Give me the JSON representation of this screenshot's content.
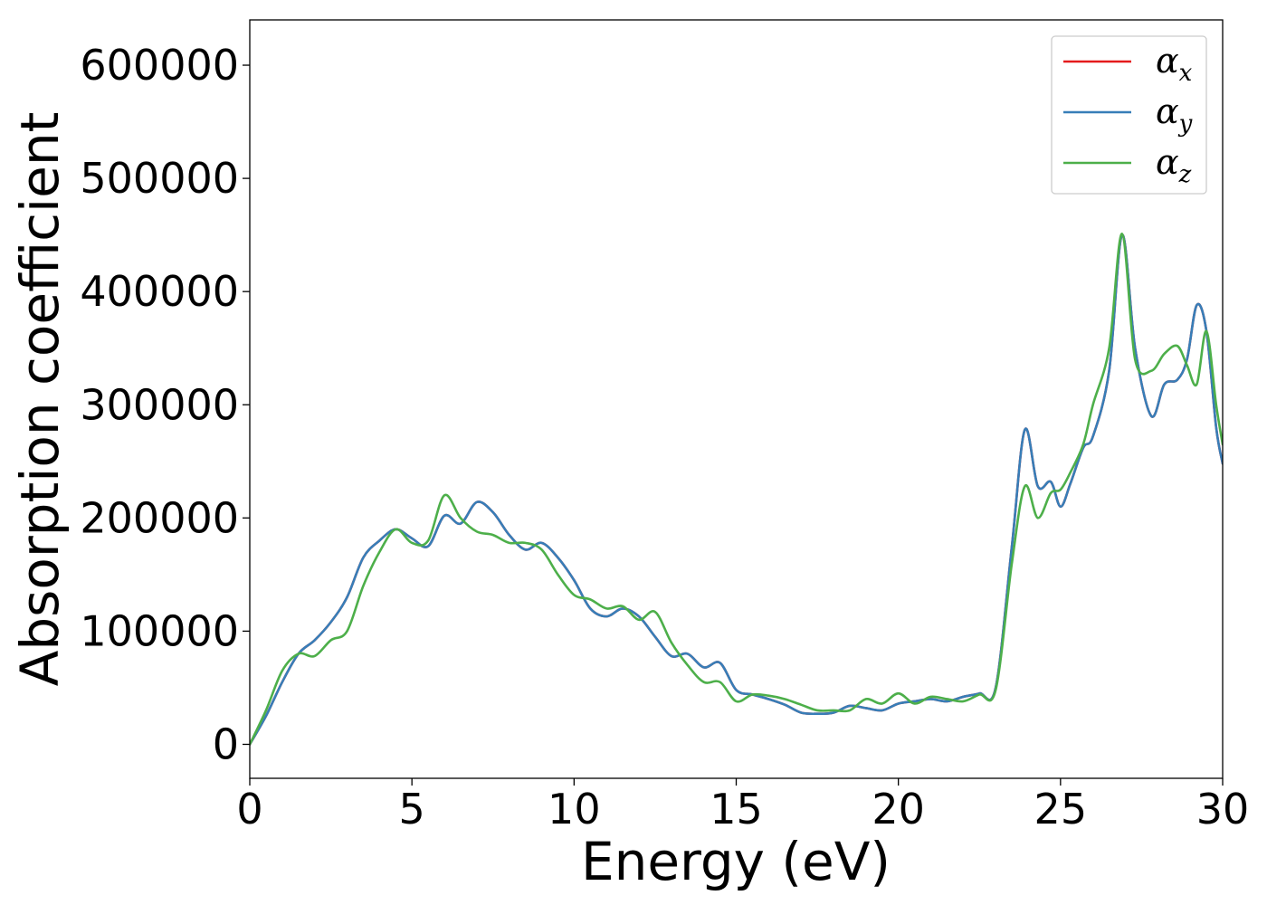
{
  "chart_data": {
    "type": "line",
    "title": "",
    "xlabel": "Energy (eV)",
    "ylabel": "Absorption coefficient",
    "xlim": [
      0,
      30
    ],
    "ylim": [
      -30000,
      640000
    ],
    "xticks": [
      0,
      5,
      10,
      15,
      20,
      25,
      30
    ],
    "xtick_labels": [
      "0",
      "5",
      "10",
      "15",
      "20",
      "25",
      "30"
    ],
    "yticks": [
      0,
      100000,
      200000,
      300000,
      400000,
      500000,
      600000
    ],
    "ytick_labels": [
      "0",
      "100000",
      "200000",
      "300000",
      "400000",
      "500000",
      "600000"
    ],
    "grid": false,
    "legend": {
      "placement": "top-right",
      "entries": [
        {
          "base": "α",
          "sub": "x",
          "color": "#e41a1c"
        },
        {
          "base": "α",
          "sub": "y",
          "color": "#377eb8"
        },
        {
          "base": "α",
          "sub": "z",
          "color": "#4daf4a"
        }
      ]
    },
    "series": [
      {
        "name": "αx",
        "color": "#e41a1c",
        "x": [
          0,
          0.5,
          1.0,
          1.5,
          2.0,
          2.5,
          3.0,
          3.5,
          4.0,
          4.5,
          5.0,
          5.5,
          6.0,
          6.5,
          7.0,
          7.5,
          8.0,
          8.5,
          9.0,
          9.5,
          10.0,
          10.5,
          11.0,
          11.5,
          12.0,
          12.5,
          13.0,
          13.5,
          14.0,
          14.5,
          15.0,
          15.5,
          16.0,
          16.5,
          17.0,
          17.5,
          18.0,
          18.5,
          19.0,
          19.5,
          20.0,
          20.5,
          21.0,
          21.5,
          22.0,
          22.5,
          23.0,
          23.5,
          23.9,
          24.3,
          24.7,
          25.0,
          25.3,
          25.7,
          26.0,
          26.5,
          26.9,
          27.3,
          27.8,
          28.2,
          28.6,
          28.9,
          29.2,
          29.5,
          29.8,
          30.0
        ],
        "y": [
          0,
          25000,
          55000,
          80000,
          92000,
          108000,
          130000,
          165000,
          180000,
          190000,
          182000,
          175000,
          202000,
          195000,
          214000,
          205000,
          185000,
          172000,
          178000,
          165000,
          145000,
          120000,
          113000,
          120000,
          113000,
          95000,
          78000,
          80000,
          68000,
          72000,
          48000,
          44000,
          40000,
          35000,
          28000,
          27000,
          28000,
          34000,
          32000,
          30000,
          36000,
          38000,
          40000,
          38000,
          42000,
          45000,
          50000,
          175000,
          278000,
          228000,
          232000,
          210000,
          230000,
          262000,
          272000,
          330000,
          450000,
          350000,
          290000,
          318000,
          322000,
          340000,
          388000,
          365000,
          280000,
          248000
        ]
      },
      {
        "name": "αy",
        "color": "#377eb8",
        "x": [
          0,
          0.5,
          1.0,
          1.5,
          2.0,
          2.5,
          3.0,
          3.5,
          4.0,
          4.5,
          5.0,
          5.5,
          6.0,
          6.5,
          7.0,
          7.5,
          8.0,
          8.5,
          9.0,
          9.5,
          10.0,
          10.5,
          11.0,
          11.5,
          12.0,
          12.5,
          13.0,
          13.5,
          14.0,
          14.5,
          15.0,
          15.5,
          16.0,
          16.5,
          17.0,
          17.5,
          18.0,
          18.5,
          19.0,
          19.5,
          20.0,
          20.5,
          21.0,
          21.5,
          22.0,
          22.5,
          23.0,
          23.5,
          23.9,
          24.3,
          24.7,
          25.0,
          25.3,
          25.7,
          26.0,
          26.5,
          26.9,
          27.3,
          27.8,
          28.2,
          28.6,
          28.9,
          29.2,
          29.5,
          29.8,
          30.0
        ],
        "y": [
          0,
          25000,
          55000,
          80000,
          92000,
          108000,
          130000,
          165000,
          180000,
          190000,
          182000,
          175000,
          202000,
          195000,
          214000,
          205000,
          185000,
          172000,
          178000,
          165000,
          145000,
          120000,
          113000,
          120000,
          113000,
          95000,
          78000,
          80000,
          68000,
          72000,
          48000,
          44000,
          40000,
          35000,
          28000,
          27000,
          28000,
          34000,
          32000,
          30000,
          36000,
          38000,
          40000,
          38000,
          42000,
          45000,
          50000,
          175000,
          278000,
          228000,
          232000,
          210000,
          230000,
          262000,
          272000,
          330000,
          450000,
          350000,
          290000,
          318000,
          322000,
          340000,
          388000,
          365000,
          280000,
          248000
        ]
      },
      {
        "name": "αz",
        "color": "#4daf4a",
        "x": [
          0,
          0.5,
          1.0,
          1.5,
          2.0,
          2.5,
          3.0,
          3.5,
          4.0,
          4.5,
          5.0,
          5.5,
          6.0,
          6.5,
          7.0,
          7.5,
          8.0,
          8.5,
          9.0,
          9.5,
          10.0,
          10.5,
          11.0,
          11.5,
          12.0,
          12.5,
          13.0,
          13.5,
          14.0,
          14.5,
          15.0,
          15.5,
          16.0,
          16.5,
          17.0,
          17.5,
          18.0,
          18.5,
          19.0,
          19.5,
          20.0,
          20.5,
          21.0,
          21.5,
          22.0,
          22.5,
          23.0,
          23.5,
          23.9,
          24.3,
          24.7,
          25.0,
          25.3,
          25.7,
          26.0,
          26.5,
          26.9,
          27.3,
          27.8,
          28.2,
          28.6,
          28.9,
          29.2,
          29.5,
          29.8,
          30.0
        ],
        "y": [
          0,
          30000,
          65000,
          80000,
          78000,
          92000,
          100000,
          140000,
          170000,
          190000,
          178000,
          180000,
          220000,
          200000,
          188000,
          185000,
          178000,
          178000,
          172000,
          150000,
          132000,
          128000,
          120000,
          122000,
          110000,
          117000,
          90000,
          70000,
          55000,
          55000,
          38000,
          44000,
          43000,
          40000,
          35000,
          30000,
          30000,
          30000,
          40000,
          36000,
          45000,
          36000,
          42000,
          40000,
          38000,
          44000,
          48000,
          160000,
          228000,
          200000,
          222000,
          225000,
          240000,
          265000,
          300000,
          350000,
          451000,
          340000,
          330000,
          345000,
          352000,
          335000,
          318000,
          365000,
          300000,
          265000
        ]
      }
    ]
  }
}
